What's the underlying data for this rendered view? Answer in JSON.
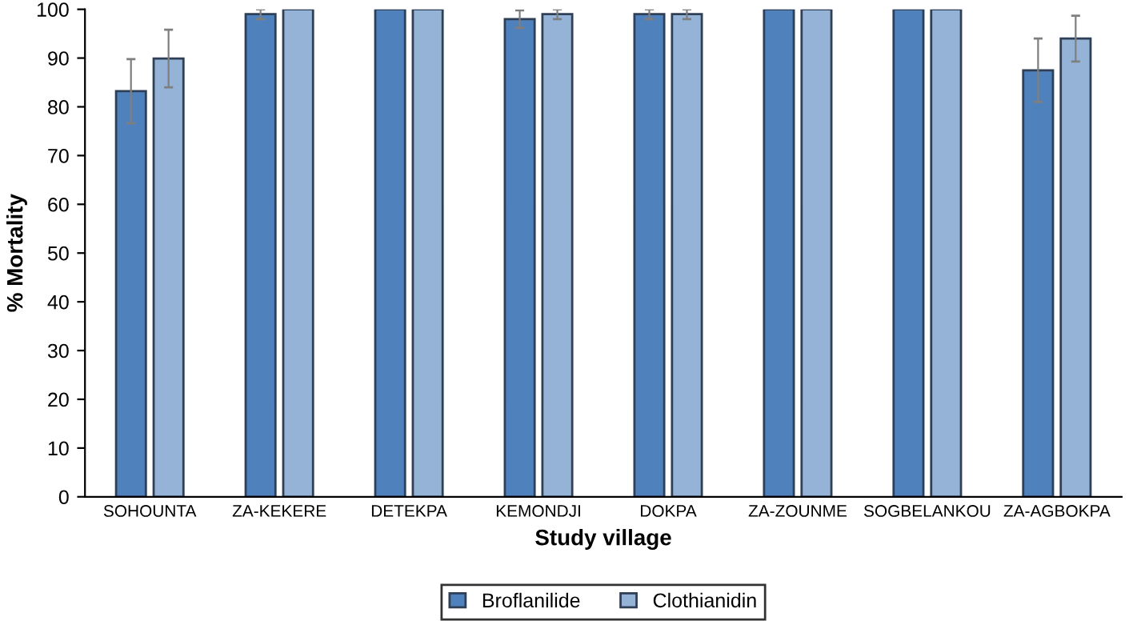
{
  "chart_data": {
    "type": "bar",
    "xlabel": "Study village",
    "ylabel": "% Mortality",
    "categories": [
      "SOHOUNTA",
      "ZA-KEKERE",
      "DETEKPA",
      "KEMONDJI",
      "DOKPA",
      "ZA-ZOUNME",
      "SOGBELANKOU",
      "ZA-AGBOKPA"
    ],
    "series": [
      {
        "name": "Broflanilide",
        "color": "#4f81bd",
        "values": [
          83.2,
          99,
          100,
          98,
          99,
          100,
          100,
          87.5
        ],
        "errors": [
          6.6,
          1,
          null,
          1.8,
          1,
          null,
          null,
          6.5
        ]
      },
      {
        "name": "Clothianidin",
        "color": "#95b3d7",
        "values": [
          89.9,
          100,
          100,
          99,
          99,
          100,
          100,
          94
        ],
        "errors": [
          5.9,
          null,
          null,
          1,
          1,
          null,
          null,
          4.7
        ]
      }
    ],
    "ylim": [
      0,
      100
    ],
    "yticks": [
      0,
      10,
      20,
      30,
      40,
      50,
      60,
      70,
      80,
      90,
      100
    ],
    "grid": false,
    "legend": "bottom"
  }
}
